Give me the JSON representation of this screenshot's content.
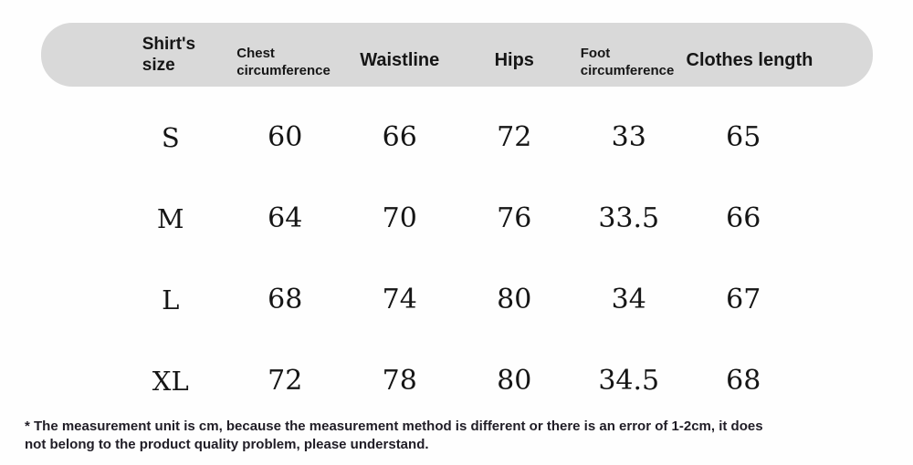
{
  "colors": {
    "header_bar": "#d9d9d9",
    "background": "#fefefe",
    "header_text": "#161616",
    "body_text": "#151515",
    "footnote_text": "#201d26"
  },
  "chart_data": {
    "type": "table",
    "title": "",
    "columns": [
      "Shirt's size",
      "Chest circumference",
      "Waistline",
      "Hips",
      "Foot circumference",
      "Clothes length"
    ],
    "rows": [
      [
        "S",
        "60",
        "66",
        "72",
        "33",
        "65"
      ],
      [
        "M",
        "64",
        "70",
        "76",
        "33.5",
        "66"
      ],
      [
        "L",
        "68",
        "74",
        "80",
        "34",
        "67"
      ],
      [
        "XL",
        "72",
        "78",
        "80",
        "34.5",
        "68"
      ]
    ],
    "unit_note_lines": [
      "* The measurement unit is cm, because the measurement method is different or there is an error of 1-2cm, it does",
      "not belong to the product quality problem, please understand."
    ]
  }
}
